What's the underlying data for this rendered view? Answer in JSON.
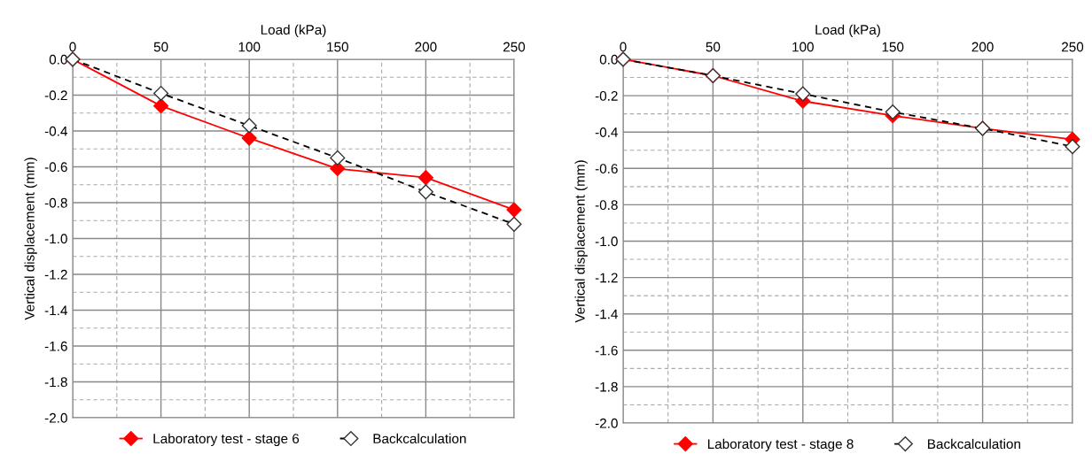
{
  "chart_data": [
    {
      "type": "line",
      "xlabel": "Load (kPa)",
      "ylabel": "Vertical displacement (mm)",
      "x": [
        0,
        50,
        100,
        150,
        200,
        250
      ],
      "xlim": [
        0,
        250
      ],
      "xticks": [
        0,
        50,
        100,
        150,
        200,
        250
      ],
      "ylim": [
        -2.0,
        0.0
      ],
      "yticks": [
        {
          "value": 0,
          "label": "0.0"
        },
        {
          "value": -0.2,
          "label": "-0.2"
        },
        {
          "value": -0.4,
          "label": "-0.4"
        },
        {
          "value": -0.6,
          "label": "-0.6"
        },
        {
          "value": -0.8,
          "label": "-0.8"
        },
        {
          "value": -1.0,
          "label": "-1.0"
        },
        {
          "value": -1.2,
          "label": "-1.2"
        },
        {
          "value": -1.4,
          "label": "-1.4"
        },
        {
          "value": -1.6,
          "label": "-1.6"
        },
        {
          "value": -1.8,
          "label": "-1.8"
        },
        {
          "value": -2.0,
          "label": "-2.0"
        }
      ],
      "grid": true,
      "legend": "bottom",
      "series": [
        {
          "name": "Laboratory test - stage 6",
          "color": "#ff0000",
          "marker": "diamond",
          "line_style": "solid",
          "values": [
            0,
            -0.26,
            -0.44,
            -0.61,
            -0.66,
            -0.84
          ]
        },
        {
          "name": "Backcalculation",
          "color": "#000000",
          "marker": "diamond",
          "line_style": "dashed",
          "values": [
            0,
            -0.19,
            -0.37,
            -0.55,
            -0.74,
            -0.92
          ]
        }
      ]
    },
    {
      "type": "line",
      "xlabel": "Load (kPa)",
      "ylabel": "Vertical displacement (mm)",
      "x": [
        0,
        50,
        100,
        150,
        200,
        250
      ],
      "xlim": [
        0,
        250
      ],
      "xticks": [
        0,
        50,
        100,
        150,
        200,
        250
      ],
      "ylim": [
        -2.0,
        0.0
      ],
      "yticks": [
        {
          "value": 0,
          "label": "0.0"
        },
        {
          "value": -0.2,
          "label": "-0.2"
        },
        {
          "value": -0.4,
          "label": "-0.4"
        },
        {
          "value": -0.6,
          "label": "-0.6"
        },
        {
          "value": -0.8,
          "label": "-0.8"
        },
        {
          "value": -1.0,
          "label": "-1.0"
        },
        {
          "value": -1.2,
          "label": "-1.2"
        },
        {
          "value": -1.4,
          "label": "-1.4"
        },
        {
          "value": -1.6,
          "label": "-1.6"
        },
        {
          "value": -1.8,
          "label": "-1.8"
        },
        {
          "value": -2.0,
          "label": "-2.0"
        }
      ],
      "grid": true,
      "legend": "bottom",
      "series": [
        {
          "name": "Laboratory test - stage 8",
          "color": "#ff0000",
          "marker": "diamond",
          "line_style": "solid",
          "values": [
            0,
            -0.09,
            -0.23,
            -0.31,
            -0.38,
            -0.44
          ]
        },
        {
          "name": "Backcalculation",
          "color": "#000000",
          "marker": "diamond",
          "line_style": "dashed",
          "values": [
            0,
            -0.09,
            -0.19,
            -0.29,
            -0.38,
            -0.48
          ]
        }
      ]
    }
  ]
}
